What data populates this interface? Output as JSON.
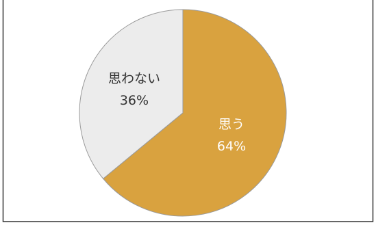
{
  "chart_data": {
    "type": "pie",
    "categories": [
      "思う",
      "思わない"
    ],
    "values": [
      64,
      36
    ],
    "value_labels": [
      "64%",
      "36%"
    ],
    "colors": [
      "#d9a23f",
      "#ececec"
    ],
    "label_colors": [
      "#ffffff",
      "#333333"
    ]
  }
}
